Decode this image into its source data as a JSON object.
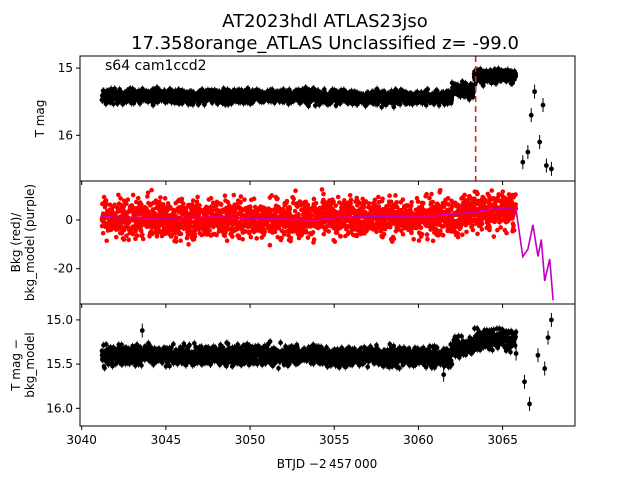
{
  "title_line1": "AT2023hdl  ATLAS23jso",
  "title_line2": "17.358orange_ATLAS Unclassified z= -99.0",
  "annotation": "s64 cam1ccd2",
  "xlabel": "BTJD −2 457 000",
  "colors": {
    "lc": "#000000",
    "bkg": "#ff0000",
    "bkg_model": "#bf00bf",
    "marker": "#d62728"
  },
  "chart_data": [
    {
      "type": "scatter",
      "panel": "top",
      "ylabel": "T mag",
      "xlim": [
        3039.9,
        3069.3
      ],
      "ylim": [
        16.68,
        14.82
      ],
      "y_inverted": true,
      "xticks": [
        3040,
        3045,
        3050,
        3055,
        3060,
        3065
      ],
      "yticks": [
        15,
        16
      ],
      "vline_x": 3063.4,
      "series": [
        {
          "color": "#000000",
          "segments": [
            {
              "x0": 3041.2,
              "x1": 3054.3,
              "y": 15.42,
              "scatter": 0.05
            },
            {
              "x0": 3054.3,
              "x1": 3062.0,
              "y": 15.44,
              "scatter": 0.05
            },
            {
              "x0": 3062.0,
              "x1": 3063.3,
              "y": 15.33,
              "scatter": 0.05
            },
            {
              "x0": 3063.3,
              "x1": 3065.8,
              "y": 15.12,
              "scatter": 0.05
            }
          ]
        },
        {
          "points": [
            [
              3066.2,
              16.4
            ],
            [
              3066.5,
              16.25
            ],
            [
              3066.9,
              15.35
            ],
            [
              3067.2,
              16.1
            ],
            [
              3067.6,
              16.45
            ],
            [
              3067.9,
              16.5
            ],
            [
              3066.7,
              15.7
            ],
            [
              3067.4,
              15.55
            ]
          ]
        }
      ]
    },
    {
      "type": "scatter",
      "panel": "middle",
      "ylabel": "Bkg (red)/\nbkg_model (purple)",
      "xlim": [
        3039.9,
        3069.3
      ],
      "ylim": [
        -34.5,
        16.0
      ],
      "xticks": [
        3040,
        3045,
        3050,
        3055,
        3060,
        3065
      ],
      "yticks": [
        0,
        -20
      ],
      "series": [
        {
          "name": "Bkg",
          "color": "#ff0000",
          "segments": [
            {
              "x0": 3041.2,
              "x1": 3054.3,
              "y": 0.5,
              "scatter": 4.0
            },
            {
              "x0": 3054.3,
              "x1": 3062.5,
              "y": 1.0,
              "scatter": 4.0
            },
            {
              "x0": 3062.5,
              "x1": 3065.8,
              "y": 3.5,
              "scatter": 4.0
            }
          ]
        },
        {
          "name": "bkg_model",
          "color": "#bf00bf",
          "x": [
            3041.2,
            3042.0,
            3045,
            3048,
            3051,
            3054,
            3055,
            3058,
            3061,
            3063,
            3065,
            3065.8,
            3066.2,
            3066.5,
            3066.8,
            3067.1,
            3067.3,
            3067.5,
            3067.8,
            3068.0
          ],
          "y": [
            1.5,
            1.0,
            0.8,
            1.2,
            0.5,
            0.0,
            1.0,
            1.5,
            1.8,
            3.0,
            5.0,
            4.0,
            -15.0,
            -12.0,
            -2.0,
            -15.0,
            -8.0,
            -25.0,
            -16.0,
            -33.0
          ]
        }
      ]
    },
    {
      "type": "scatter",
      "panel": "bottom",
      "ylabel": "T mag −\nbkg_model",
      "xlabel": "BTJD −2 457 000",
      "xlim": [
        3039.9,
        3069.3
      ],
      "ylim": [
        16.2,
        14.82
      ],
      "y_inverted": true,
      "xticks": [
        3040,
        3045,
        3050,
        3055,
        3060,
        3065
      ],
      "yticks": [
        15.0,
        15.5,
        16.0
      ],
      "series": [
        {
          "color": "#000000",
          "segments": [
            {
              "x0": 3041.2,
              "x1": 3054.3,
              "y": 15.4,
              "scatter": 0.055
            },
            {
              "x0": 3054.3,
              "x1": 3062.0,
              "y": 15.42,
              "scatter": 0.055
            },
            {
              "x0": 3062.0,
              "x1": 3063.3,
              "y": 15.3,
              "scatter": 0.055
            },
            {
              "x0": 3063.3,
              "x1": 3065.8,
              "y": 15.22,
              "scatter": 0.055
            }
          ]
        },
        {
          "points": [
            [
              3043.6,
              15.12
            ],
            [
              3061.5,
              15.62
            ],
            [
              3066.3,
              15.7
            ],
            [
              3066.6,
              15.95
            ],
            [
              3067.1,
              15.4
            ],
            [
              3067.5,
              15.55
            ],
            [
              3067.7,
              15.2
            ],
            [
              3067.9,
              15.0
            ],
            [
              3065.8,
              15.38
            ]
          ]
        }
      ]
    }
  ]
}
